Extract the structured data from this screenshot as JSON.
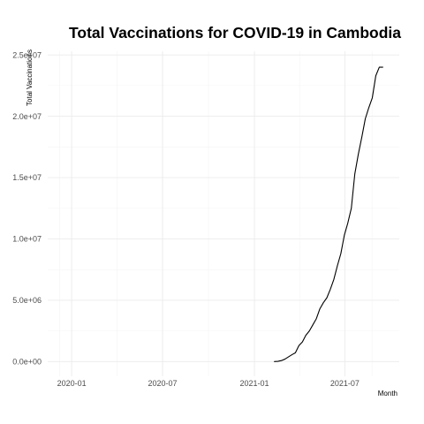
{
  "chart_data": {
    "type": "line",
    "title": "Total Vaccinations for COVID-19 in Cambodia",
    "xlabel": "Month",
    "ylabel": "Total Vaccinations",
    "x_ticks": [
      "2020-01",
      "2020-07",
      "2021-01",
      "2021-07"
    ],
    "x_tick_dates": [
      "2020-01-01",
      "2020-07-01",
      "2021-01-01",
      "2021-07-01"
    ],
    "y_ticks": [
      "0.0e+00",
      "5.0e+06",
      "1.0e+07",
      "1.5e+07",
      "2.0e+07",
      "2.5e+07"
    ],
    "y_tick_values": [
      0,
      5000000,
      10000000,
      15000000,
      20000000,
      25000000
    ],
    "xlim": [
      "2019-11-14",
      "2021-10-18"
    ],
    "ylim": [
      -1200000,
      25300000
    ],
    "grid": true,
    "legend": "none",
    "series": [
      {
        "color": "#000000",
        "x": [
          "2021-02-10",
          "2021-02-17",
          "2021-02-24",
          "2021-03-03",
          "2021-03-10",
          "2021-03-17",
          "2021-03-24",
          "2021-03-31",
          "2021-04-07",
          "2021-04-14",
          "2021-04-21",
          "2021-04-28",
          "2021-05-05",
          "2021-05-12",
          "2021-05-19",
          "2021-05-26",
          "2021-06-02",
          "2021-06-09",
          "2021-06-16",
          "2021-06-23",
          "2021-06-30",
          "2021-07-07",
          "2021-07-14",
          "2021-07-21",
          "2021-07-28",
          "2021-08-04",
          "2021-08-11",
          "2021-08-18",
          "2021-08-25",
          "2021-09-01",
          "2021-09-08",
          "2021-09-15",
          "2021-09-22",
          "2021-09-29"
        ],
        "y": [
          0,
          20000,
          80000,
          200000,
          380000,
          560000,
          720000,
          1300000,
          1600000,
          2150000,
          2500000,
          3000000,
          3500000,
          4300000,
          4800000,
          5200000,
          5900000,
          6700000,
          7800000,
          8800000,
          10300000,
          11300000,
          12500000,
          15300000,
          16900000,
          18300000,
          19800000,
          20700000,
          21500000,
          23300000,
          24000000,
          24000000,
          null,
          null
        ]
      }
    ]
  }
}
